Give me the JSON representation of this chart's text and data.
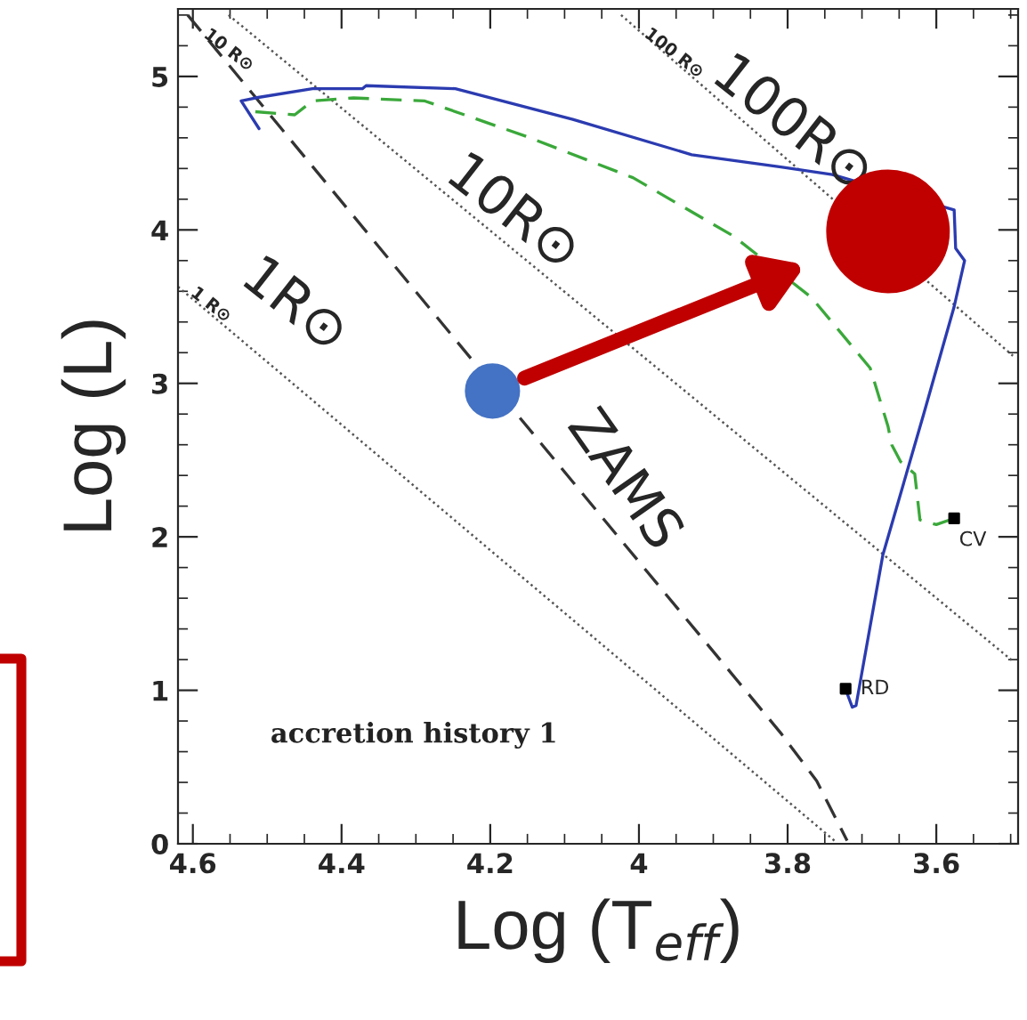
{
  "chart_data": {
    "type": "line",
    "xlabel": "Log (T$_{eff}$)",
    "ylabel": "Log (L)",
    "xlim": [
      4.62,
      3.49
    ],
    "ylim": [
      0,
      5.44
    ],
    "xticks": [
      4.6,
      4.4,
      4.2,
      {
        "value": 4.0,
        "label": "4"
      },
      3.8,
      3.6
    ],
    "yticks": [
      0,
      1,
      2,
      3,
      4,
      5
    ],
    "grid": false,
    "series": [
      {
        "color": "#555555",
        "line_style": "dotted",
        "x": [
          4.62,
          3.737
        ],
        "values": [
          3.63,
          0.02
        ]
      },
      {
        "color": "#555555",
        "line_style": "dotted",
        "x": [
          4.552,
          3.497
        ],
        "values": [
          5.4,
          1.19
        ]
      },
      {
        "color": "#555555",
        "line_style": "dotted",
        "x": [
          4.024,
          3.497
        ],
        "values": [
          5.4,
          3.18
        ]
      },
      {
        "color": "#333333",
        "line_style": "dashed",
        "x": [
          4.607,
          4.12,
          3.809,
          3.761,
          3.72
        ],
        "values": [
          5.4,
          2.54,
          0.72,
          0.41,
          0.02
        ]
      },
      {
        "color": "#2b3bb0",
        "line_style": "solid",
        "x": [
          4.511,
          4.535,
          4.516,
          4.439,
          4.372,
          4.367,
          4.247,
          4.089,
          3.929,
          3.809,
          3.74,
          3.576,
          3.574,
          3.562,
          3.576,
          3.617,
          3.672,
          3.708,
          3.713,
          3.72
        ],
        "values": [
          4.66,
          4.84,
          4.86,
          4.92,
          4.92,
          4.94,
          4.92,
          4.72,
          4.49,
          4.41,
          4.36,
          4.13,
          3.88,
          3.8,
          3.5,
          2.8,
          1.88,
          0.9,
          0.89,
          0.98
        ]
      },
      {
        "color": "#3aa83a",
        "line_style": "dashed",
        "x": [
          4.516,
          4.463,
          4.439,
          4.384,
          4.288,
          4.152,
          4.008,
          3.873,
          3.768,
          3.689,
          3.665,
          3.66,
          3.648,
          3.629,
          3.622,
          3.6,
          3.576
        ],
        "values": [
          4.77,
          4.75,
          4.84,
          4.86,
          4.84,
          4.61,
          4.34,
          3.96,
          3.56,
          3.1,
          2.72,
          2.6,
          2.49,
          2.41,
          2.11,
          2.08,
          2.12
        ]
      },
      {
        "type": "scatter",
        "marker": "square",
        "color": "#000000",
        "x": [
          3.722,
          3.576
        ],
        "values": [
          1.01,
          2.12
        ]
      },
      {
        "type": "bubble",
        "color": "#4472c4",
        "x": [
          4.197
        ],
        "values": [
          2.95
        ],
        "sizes": [
          0.19
        ]
      },
      {
        "type": "bubble",
        "color": "#c00000",
        "x": [
          3.665
        ],
        "values": [
          3.99
        ],
        "sizes": [
          1
        ]
      }
    ],
    "annotations": [
      "100R⊙",
      "10R⊙",
      "1R⊙",
      "ZAMS",
      {
        "text": "100 R⊙",
        "x": 3.953,
        "y": 5.15
      },
      {
        "text": "10 R⊙",
        "x": 4.552,
        "y": 5.17
      },
      {
        "text": "1 R⊙",
        "x": 4.576,
        "y": 3.51
      },
      {
        "text": "RD",
        "x": 3.722,
        "y": 1.01
      },
      {
        "text": "CV",
        "x": 3.576,
        "y": 2.12
      },
      "accretion history 1"
    ]
  }
}
